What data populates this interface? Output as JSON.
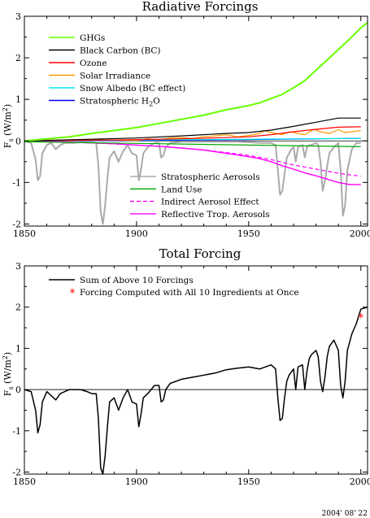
{
  "stamp": "2004' 08' 22",
  "chart_data": [
    {
      "type": "line",
      "title": "Radiative Forcings",
      "ylabel": "F",
      "ylabel_sub": "s",
      "ylabel_unit": "(W/m",
      "ylabel_sup": "2",
      "ylabel_end": ")",
      "xlim": [
        1850,
        2003
      ],
      "ylim": [
        -2.05,
        3
      ],
      "xticks": [
        1850,
        1900,
        1950,
        2000
      ],
      "xtick_labels": [
        "1850",
        "1900",
        "1950",
        "2000"
      ],
      "yticks": [
        -2,
        -1,
        0,
        1,
        2,
        3
      ],
      "ytick_labels": [
        "-2",
        "-1",
        "0",
        "1",
        "2",
        "3"
      ],
      "legend_top": [
        {
          "label": "GHGs",
          "color": "#66ff00"
        },
        {
          "label": "Black Carbon (BC)",
          "color": "#000000"
        },
        {
          "label": "Ozone",
          "color": "#ff0000"
        },
        {
          "label": "Solar Irradiance",
          "color": "#ff9900"
        },
        {
          "label": "Snow Albedo (BC effect)",
          "color": "#00e5ee"
        },
        {
          "label": "Stratospheric H",
          "label_sub": "2",
          "label_end": "O",
          "color": "#0000ff"
        }
      ],
      "legend_bottom": [
        {
          "label": "Stratospheric Aerosols",
          "color": "#aaaaaa"
        },
        {
          "label": "Land Use",
          "color": "#00aa00"
        },
        {
          "label": "Indirect Aerosol Effect",
          "color": "#ff00ff",
          "dashed": true
        },
        {
          "label": "Reflective Trop. Aerosols",
          "color": "#ff00ff"
        }
      ],
      "series": [
        {
          "name": "Stratospheric Aerosols",
          "color": "#aaaaaa",
          "width": 2,
          "x": [
            1850,
            1853,
            1855,
            1856,
            1857,
            1858,
            1860,
            1862,
            1864,
            1866,
            1868,
            1872,
            1876,
            1880,
            1882,
            1883,
            1884,
            1885,
            1886,
            1887,
            1888,
            1890,
            1892,
            1894,
            1896,
            1898,
            1900,
            1901,
            1902,
            1903,
            1905,
            1908,
            1910,
            1911,
            1912,
            1913,
            1915,
            1920,
            1925,
            1930,
            1935,
            1940,
            1945,
            1950,
            1955,
            1960,
            1962,
            1963,
            1964,
            1965,
            1966,
            1967,
            1968,
            1969,
            1970,
            1971,
            1972,
            1974,
            1975,
            1976,
            1977,
            1978,
            1980,
            1981,
            1982,
            1983,
            1984,
            1985,
            1986,
            1988,
            1990,
            1991,
            1992,
            1993,
            1994,
            1996,
            1998,
            2000
          ],
          "y": [
            0.0,
            -0.05,
            -0.45,
            -0.95,
            -0.85,
            -0.3,
            -0.1,
            -0.05,
            -0.2,
            -0.1,
            -0.05,
            -0.05,
            -0.03,
            -0.03,
            -0.05,
            -0.6,
            -1.7,
            -2.0,
            -1.55,
            -0.9,
            -0.4,
            -0.25,
            -0.5,
            -0.25,
            -0.1,
            -0.3,
            -0.35,
            -0.95,
            -0.7,
            -0.3,
            -0.15,
            -0.05,
            -0.05,
            -0.4,
            -0.35,
            -0.15,
            -0.05,
            -0.02,
            -0.02,
            -0.02,
            -0.02,
            -0.02,
            -0.02,
            -0.03,
            -0.05,
            -0.05,
            -0.1,
            -0.7,
            -1.3,
            -1.2,
            -0.8,
            -0.4,
            -0.3,
            -0.2,
            -0.15,
            -0.5,
            -0.15,
            -0.1,
            -0.4,
            -0.15,
            -0.1,
            -0.1,
            -0.05,
            -0.1,
            -0.5,
            -1.2,
            -0.95,
            -0.6,
            -0.3,
            -0.15,
            -0.05,
            -0.7,
            -1.8,
            -1.55,
            -0.7,
            -0.2,
            -0.05,
            -0.05
          ]
        },
        {
          "name": "Reflective Trop. Aerosols",
          "color": "#ff00ff",
          "width": 1.4,
          "x": [
            1850,
            1870,
            1890,
            1900,
            1910,
            1920,
            1930,
            1940,
            1950,
            1955,
            1960,
            1965,
            1970,
            1975,
            1980,
            1985,
            1990,
            1995,
            2000
          ],
          "y": [
            0.0,
            -0.03,
            -0.07,
            -0.1,
            -0.13,
            -0.17,
            -0.22,
            -0.3,
            -0.38,
            -0.43,
            -0.5,
            -0.6,
            -0.68,
            -0.77,
            -0.84,
            -0.92,
            -1.0,
            -1.05,
            -1.05
          ]
        },
        {
          "name": "Indirect Aerosol Effect",
          "color": "#ff00ff",
          "width": 1.2,
          "dashed": true,
          "x": [
            1850,
            1870,
            1890,
            1900,
            1910,
            1920,
            1930,
            1940,
            1950,
            1960,
            1970,
            1980,
            1990,
            2000
          ],
          "y": [
            0.0,
            -0.03,
            -0.07,
            -0.1,
            -0.13,
            -0.17,
            -0.22,
            -0.28,
            -0.35,
            -0.45,
            -0.58,
            -0.68,
            -0.78,
            -0.85
          ]
        },
        {
          "name": "Land Use",
          "color": "#00aa00",
          "width": 1.2,
          "x": [
            1850,
            1900,
            1950,
            2000
          ],
          "y": [
            -0.02,
            -0.06,
            -0.1,
            -0.14
          ]
        },
        {
          "name": "Stratospheric H2O",
          "color": "#0000ff",
          "width": 1.2,
          "x": [
            1850,
            1900,
            1950,
            1980,
            2000
          ],
          "y": [
            0.0,
            0.01,
            0.03,
            0.05,
            0.06
          ]
        },
        {
          "name": "Snow Albedo (BC effect)",
          "color": "#00e5ee",
          "width": 1.2,
          "x": [
            1850,
            1900,
            1950,
            2000
          ],
          "y": [
            0.0,
            0.02,
            0.04,
            0.06
          ]
        },
        {
          "name": "Solar Irradiance",
          "color": "#ff9900",
          "width": 1.2,
          "x": [
            1850,
            1860,
            1870,
            1880,
            1890,
            1900,
            1905,
            1910,
            1915,
            1920,
            1925,
            1930,
            1935,
            1940,
            1945,
            1950,
            1955,
            1957,
            1960,
            1965,
            1968,
            1970,
            1975,
            1979,
            1982,
            1986,
            1990,
            1993,
            1996,
            2000
          ],
          "y": [
            0.0,
            0.02,
            0.01,
            0.03,
            0.02,
            0.01,
            0.05,
            0.03,
            0.07,
            0.08,
            0.06,
            0.1,
            0.12,
            0.15,
            0.1,
            0.13,
            0.18,
            0.25,
            0.2,
            0.15,
            0.22,
            0.2,
            0.15,
            0.28,
            0.22,
            0.18,
            0.27,
            0.2,
            0.22,
            0.25
          ]
        },
        {
          "name": "Ozone",
          "color": "#ff0000",
          "width": 1.2,
          "x": [
            1850,
            1900,
            1920,
            1940,
            1950,
            1960,
            1970,
            1980,
            1990,
            2000
          ],
          "y": [
            0.0,
            0.03,
            0.05,
            0.08,
            0.1,
            0.15,
            0.22,
            0.28,
            0.33,
            0.34
          ]
        },
        {
          "name": "Black Carbon (BC)",
          "color": "#000000",
          "width": 1.2,
          "x": [
            1850,
            1880,
            1900,
            1920,
            1940,
            1950,
            1960,
            1970,
            1980,
            1990,
            2000
          ],
          "y": [
            0.0,
            0.04,
            0.07,
            0.12,
            0.18,
            0.2,
            0.26,
            0.35,
            0.45,
            0.55,
            0.55
          ]
        },
        {
          "name": "GHGs",
          "color": "#66ff00",
          "width": 2,
          "x": [
            1850,
            1860,
            1870,
            1880,
            1890,
            1900,
            1910,
            1920,
            1930,
            1940,
            1945,
            1950,
            1955,
            1960,
            1965,
            1970,
            1975,
            1980,
            1985,
            1990,
            1995,
            2000,
            2003
          ],
          "y": [
            0.0,
            0.05,
            0.1,
            0.18,
            0.25,
            0.32,
            0.42,
            0.52,
            0.62,
            0.75,
            0.8,
            0.85,
            0.92,
            1.02,
            1.12,
            1.28,
            1.45,
            1.7,
            1.95,
            2.2,
            2.45,
            2.72,
            2.85
          ]
        }
      ]
    },
    {
      "type": "line",
      "title": "Total Forcing",
      "ylabel": "F",
      "ylabel_sub": "s",
      "ylabel_unit": "(W/m",
      "ylabel_sup": "2",
      "ylabel_end": ")",
      "xlim": [
        1850,
        2003
      ],
      "ylim": [
        -2.05,
        3
      ],
      "xticks": [
        1850,
        1900,
        1950,
        2000
      ],
      "xtick_labels": [
        "1850",
        "1900",
        "1950",
        "2000"
      ],
      "yticks": [
        -2,
        -1,
        0,
        1,
        2,
        3
      ],
      "ytick_labels": [
        "-2",
        "-1",
        "0",
        "1",
        "2",
        "3"
      ],
      "legend": [
        {
          "label": "Sum of Above 10 Forcings",
          "color": "#000000",
          "kind": "line"
        },
        {
          "label": "Forcing Computed with All 10 Ingredients at Once",
          "color": "#ff0000",
          "kind": "star"
        }
      ],
      "series": [
        {
          "name": "Sum of Above 10 Forcings",
          "color": "#000000",
          "width": 1.5,
          "x": [
            1850,
            1853,
            1855,
            1856,
            1857,
            1858,
            1860,
            1862,
            1864,
            1866,
            1868,
            1870,
            1872,
            1875,
            1878,
            1880,
            1882,
            1883,
            1884,
            1885,
            1886,
            1887,
            1888,
            1890,
            1892,
            1894,
            1896,
            1898,
            1900,
            1901,
            1902,
            1903,
            1905,
            1908,
            1910,
            1911,
            1912,
            1913,
            1915,
            1920,
            1925,
            1930,
            1935,
            1940,
            1945,
            1950,
            1955,
            1960,
            1962,
            1963,
            1964,
            1965,
            1966,
            1967,
            1968,
            1970,
            1971,
            1972,
            1974,
            1975,
            1976,
            1977,
            1978,
            1980,
            1981,
            1982,
            1983,
            1984,
            1985,
            1986,
            1988,
            1990,
            1991,
            1992,
            1993,
            1994,
            1996,
            1998,
            2000,
            2003
          ],
          "y": [
            0.0,
            -0.05,
            -0.5,
            -1.05,
            -0.85,
            -0.3,
            -0.05,
            -0.15,
            -0.25,
            -0.1,
            -0.05,
            0.0,
            0.0,
            0.0,
            -0.05,
            -0.1,
            -0.1,
            -0.7,
            -1.9,
            -2.05,
            -1.6,
            -0.9,
            -0.3,
            -0.2,
            -0.5,
            -0.2,
            0.0,
            -0.3,
            -0.35,
            -0.9,
            -0.6,
            -0.2,
            -0.1,
            0.1,
            0.1,
            -0.3,
            -0.25,
            0.0,
            0.15,
            0.25,
            0.3,
            0.35,
            0.4,
            0.48,
            0.52,
            0.55,
            0.5,
            0.6,
            0.5,
            -0.2,
            -0.75,
            -0.7,
            -0.2,
            0.2,
            0.35,
            0.5,
            0.0,
            0.55,
            0.6,
            0.0,
            0.45,
            0.75,
            0.85,
            0.95,
            0.8,
            0.2,
            -0.05,
            0.3,
            0.8,
            1.05,
            1.2,
            0.95,
            0.1,
            -0.2,
            0.2,
            0.95,
            1.35,
            1.6,
            1.95,
            2.0
          ]
        }
      ],
      "points": [
        {
          "name": "Forcing Computed with All 10 Ingredients at Once",
          "x": 2000,
          "y": 1.75,
          "color": "#ff0000"
        }
      ]
    }
  ]
}
